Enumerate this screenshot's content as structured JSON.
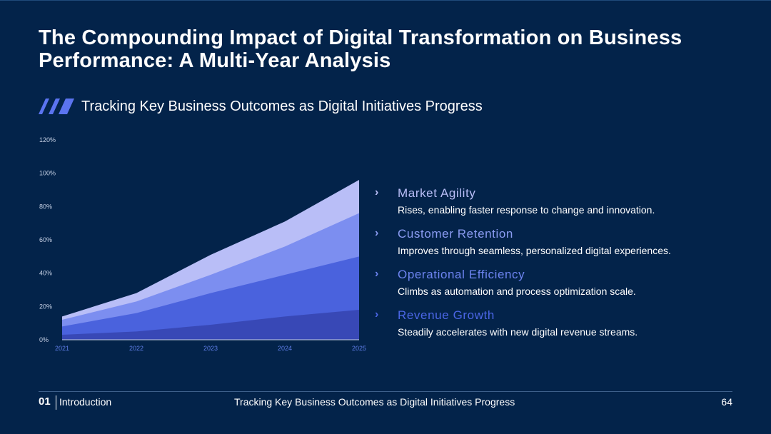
{
  "slide": {
    "title": "The Compounding Impact of Digital Transformation on Business Performance: A Multi-Year Analysis",
    "subtitle": "Tracking Key Business Outcomes as Digital Initiatives Progress"
  },
  "colors": {
    "background": "#03234a",
    "accent": "#4b66e6"
  },
  "chart_data": {
    "type": "area",
    "stacked": false,
    "x": [
      "2021",
      "2022",
      "2023",
      "2024",
      "2025"
    ],
    "ylim": [
      0,
      120
    ],
    "yticks": [
      "0%",
      "20%",
      "40%",
      "60%",
      "80%",
      "100%",
      "120%"
    ],
    "ytick_values": [
      0,
      20,
      40,
      60,
      80,
      100,
      120
    ],
    "series": [
      {
        "name": "Market Agility",
        "values": [
          14,
          28,
          51,
          71,
          96
        ],
        "color": "#b9bef7"
      },
      {
        "name": "Customer Retention",
        "values": [
          12,
          23,
          39,
          56,
          76
        ],
        "color": "#7c8ef0"
      },
      {
        "name": "Operational Efficiency",
        "values": [
          8,
          16,
          28,
          39,
          50
        ],
        "color": "#4a62dd"
      },
      {
        "name": "Revenue Growth",
        "values": [
          3,
          5,
          9,
          14,
          18
        ],
        "color": "#3848b6"
      }
    ]
  },
  "legend": [
    {
      "chevron": "›",
      "name": "Market Agility",
      "desc": "Rises, enabling faster response to change and innovation.",
      "color": "#b9bef7"
    },
    {
      "chevron": "›",
      "name": "Customer Retention",
      "desc": "Improves through seamless, personalized digital experiences.",
      "color": "#8b9cf2"
    },
    {
      "chevron": "›",
      "name": "Operational Efficiency",
      "desc": "Climbs as automation and process optimization scale.",
      "color": "#6d84f0"
    },
    {
      "chevron": "›",
      "name": "Revenue Growth",
      "desc": "Steadily accelerates with new digital revenue streams.",
      "color": "#4b66e6"
    }
  ],
  "footer": {
    "number": "01",
    "section": "Introduction",
    "center": "Tracking Key Business Outcomes as Digital Initiatives Progress",
    "page": "64"
  }
}
